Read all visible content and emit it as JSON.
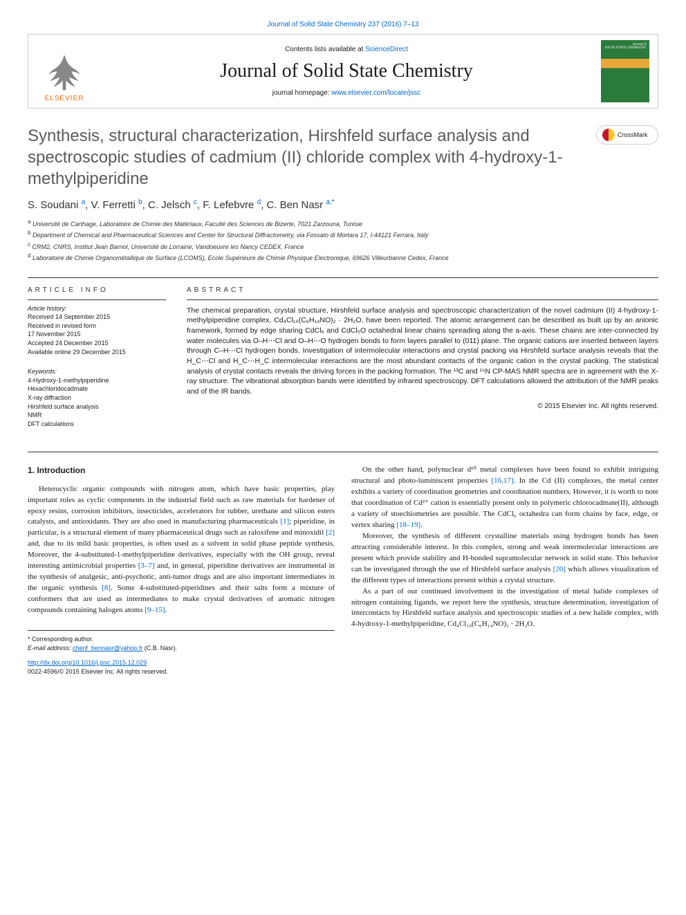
{
  "header": {
    "top_link": "Journal of Solid State Chemistry 237 (2016) 7–13",
    "contents_text": "Contents lists available at ",
    "contents_link": "ScienceDirect",
    "journal_name": "Journal of Solid State Chemistry",
    "homepage_label": "journal homepage: ",
    "homepage_url": "www.elsevier.com/locate/jssc",
    "publisher": "ELSEVIER",
    "cover_text_top": "Journal of",
    "cover_text_mid": "SOLID STATE CHEMISTRY"
  },
  "crossmark": "CrossMark",
  "title": "Synthesis, structural characterization, Hirshfeld surface analysis and spectroscopic studies of cadmium (II) chloride complex with 4-hydroxy-1-methylpiperidine",
  "authors_html": "S. Soudani <sup>a</sup>, V. Ferretti <sup>b</sup>, C. Jelsch <sup>c</sup>, F. Lefebvre <sup>d</sup>, C. Ben Nasr <sup>a,*</sup>",
  "affiliations": {
    "a": "Université de Carthage, Laboratoire de Chimie des Matériaux, Faculté des Sciences de Bizerte, 7021 Zarzouna, Tunisie",
    "b": "Department of Chemical and Pharmaceutical Sciences and Center for Structural Diffractometry, via Fossato di Mortara 17, I-44121 Ferrara, Italy",
    "c": "CRM2, CNRS, Institut Jean Barriol, Université de Lorraine, Vandoeuvre les Nancy CEDEX, France",
    "d": "Laboratoire de Chimie Organométallique de Surface (LCOMS), Ecole Supérieure de Chimie Physique Electronique, 69626 Villeurbanne Cedex, France"
  },
  "article_info": {
    "heading": "ARTICLE INFO",
    "history_label": "Article history:",
    "history": [
      "Received 14 September 2015",
      "Received in revised form",
      "17 November 2015",
      "Accepted 24 December 2015",
      "Available online 29 December 2015"
    ],
    "keywords_label": "Keywords:",
    "keywords": [
      "4-Hydroxy-1-methylpiperidine",
      "Hexachloridocadmate",
      "X-ray diffraction",
      "Hirshfeld surface analysis",
      "NMR",
      "DFT calculations"
    ]
  },
  "abstract": {
    "heading": "ABSTRACT",
    "text": "The chemical preparation, crystal structure, Hirshfeld surface analysis and spectroscopic characterization of the novel cadmium (II) 4-hydroxy-1-methylpiperidine complex, Cd₄Cl₁₀(C₆H₁₄NO)₂ · 2H₂O, have been reported. The atomic arrangement can be described as built up by an anionic framework, formed by edge sharing CdCl₆ and CdCl₅O octahedral linear chains spreading along the a-axis. These chains are inter-connected by water molecules via O–H⋯Cl and O–H⋯O hydrogen bonds to form layers parallel to (011) plane. The organic cations are inserted between layers through C–H⋯Cl hydrogen bonds. Investigation of intermolecular interactions and crystal packing via Hirshfeld surface analysis reveals that the H_C⋯Cl and H_C⋯H_C intermolecular interactions are the most abundant contacts of the organic cation in the crystal packing. The statistical analysis of crystal contacts reveals the driving forces in the packing formation. The ¹³C and ¹⁵N CP-MAS NMR spectra are in agreement with the X-ray structure. The vibrational absorption bands were identified by infrared spectroscopy. DFT calculations allowed the attribution of the NMR peaks and of the IR bands.",
    "copyright": "© 2015 Elsevier Inc. All rights reserved."
  },
  "body": {
    "intro_heading": "1. Introduction",
    "col1_p1": "Heterocyclic organic compounds with nitrogen atom, which have basic properties, play important roles as cyclic components in the industrial field such as raw materials for hardener of epoxy resins, corrosion inhibitors, insecticides, accelerators for rubber, urethane and silicon esters catalysts, and antioxidants. They are also used in manufacturing pharmaceuticals [1]; piperidine, in particular, is a structural element of many pharmaceutical drugs such as raloxifene and minoxidil [2] and, due to its mild basic properties, is often used as a solvent in solid phase peptide synthesis. Moreover, the 4-substituted-1-methylpiperidine derivatives, especially with the OH group, reveal interesting antimicrobial properties [3–7] and, in general, piperidine derivatives are instrumental in the synthesis of analgesic, anti-psychotic, anti-tumor drugs and are also important intermediates in the organic synthesis [8]. Some 4-substituted-piperidines and their salts form a mixture of conformers that are used as intermediates to make crystal derivatives of aromatic nitrogen compounds containing halogen atoms [9–15].",
    "col2_p1": "On the other hand, polynuclear d¹⁰ metal complexes have been found to exhibit intriguing structural and photo-luminiscent properties [16,17]. In the Cd (II) complexes, the metal center exhibits a variety of coordination geometries and coordination numbers. However, it is worth to note that coordination of Cd²⁺ cation is essentially present only in polymeric chlorocadmate(II), although a variety of stoechiometries are possible. The CdCl₆ octahedra can form chains by face, edge, or vertex sharing [18–19].",
    "col2_p2": "Moreover, the synthesis of different crystalline materials using hydrogen bonds has been attracting considerable interest. In this complex, strong and weak intermolecular interactions are present which provide stability and H-bonded supramolecular network in solid state. This behavior can be investigated through the use of Hirshfeld surface analysis [20] which allows visualization of the different types of interactions present within a crystal structure.",
    "col2_p3": "As a part of our continued involvement in the investigation of metal halide complexes of nitrogen containing ligands, we report here the synthesis, structure determination, investigation of intercontacts by Hirshfeld surface analysis and spectroscopic studies of a new halide complex, with 4-hydroxy-1-methylpiperidine, Cd₄Cl₁₀(C₆H₁₄NO)₂ · 2H₂O."
  },
  "footer": {
    "corresponding": "* Corresponding author.",
    "email_label": "E-mail address: ",
    "email": "cherif_bennasr@yahoo.fr",
    "email_name": " (C.B. Nasr).",
    "doi": "http://dx.doi.org/10.1016/j.jssc.2015.12.029",
    "issn": "0022-4596/© 2015 Elsevier Inc. All rights reserved."
  },
  "colors": {
    "link": "#0066cc",
    "elsevier_orange": "#ff6b00",
    "text": "#1a1a1a",
    "title_gray": "#5a5a5a"
  }
}
